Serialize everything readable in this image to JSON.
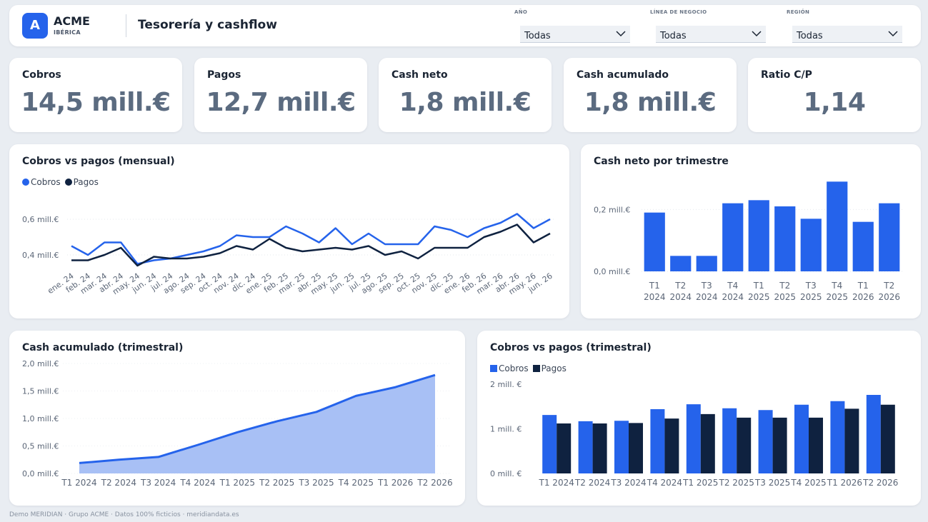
{
  "header": {
    "logo_letter": "A",
    "brand": "ACME",
    "brand_sub": "IBÉRICA",
    "title": "Tesorería y cashflow",
    "filters": [
      {
        "label": "AÑO",
        "value": "Todas"
      },
      {
        "label": "LÍNEA DE NEGOCIO",
        "value": "Todas"
      },
      {
        "label": "REGIÓN",
        "value": "Todas"
      }
    ]
  },
  "kpis": [
    {
      "label": "Cobros",
      "value": "14,5 mill.€"
    },
    {
      "label": "Pagos",
      "value": "12,7 mill.€"
    },
    {
      "label": "Cash neto",
      "value": "1,8 mill.€"
    },
    {
      "label": "Cash acumulado",
      "value": "1,8 mill.€"
    },
    {
      "label": "Ratio C/P",
      "value": "1,14"
    }
  ],
  "colors": {
    "cobros": "#2563eb",
    "pagos": "#0f2240",
    "area_fill": "#a8c0f5",
    "bar": "#2563eb"
  },
  "panels": {
    "monthly": {
      "title": "Cobros vs pagos (mensual)",
      "legend": [
        "Cobros",
        "Pagos"
      ]
    },
    "net_q": {
      "title": "Cash neto por trimestre"
    },
    "cum_q": {
      "title": "Cash acumulado (trimestral)"
    },
    "cp_q": {
      "title": "Cobros vs pagos (trimestral)",
      "legend": [
        "Cobros",
        "Pagos"
      ]
    }
  },
  "footer": "Demo MERIDIAN · Grupo ACME · Datos 100% ficticios · meridiandata.es",
  "chart_data": [
    {
      "type": "line",
      "title": "Cobros vs pagos (mensual)",
      "categories": [
        "ene. 24",
        "feb. 24",
        "mar. 24",
        "abr. 24",
        "may. 24",
        "jun. 24",
        "jul. 24",
        "ago. 24",
        "sep. 24",
        "oct. 24",
        "nov. 24",
        "dic. 24",
        "ene. 25",
        "feb. 25",
        "mar. 25",
        "abr. 25",
        "may. 25",
        "jun. 25",
        "jul. 25",
        "ago. 25",
        "sep. 25",
        "oct. 25",
        "nov. 25",
        "dic. 25",
        "ene. 26",
        "feb. 26",
        "mar. 26",
        "abr. 26",
        "may. 26",
        "jun. 26"
      ],
      "series": [
        {
          "name": "Cobros",
          "values": [
            0.45,
            0.4,
            0.47,
            0.47,
            0.35,
            0.37,
            0.38,
            0.4,
            0.42,
            0.45,
            0.51,
            0.5,
            0.5,
            0.56,
            0.52,
            0.47,
            0.55,
            0.46,
            0.52,
            0.46,
            0.46,
            0.46,
            0.56,
            0.54,
            0.5,
            0.55,
            0.58,
            0.63,
            0.55,
            0.6
          ]
        },
        {
          "name": "Pagos",
          "values": [
            0.37,
            0.37,
            0.4,
            0.44,
            0.34,
            0.39,
            0.38,
            0.38,
            0.39,
            0.41,
            0.45,
            0.43,
            0.49,
            0.44,
            0.42,
            0.43,
            0.44,
            0.43,
            0.45,
            0.4,
            0.42,
            0.38,
            0.44,
            0.44,
            0.44,
            0.5,
            0.53,
            0.57,
            0.47,
            0.52
          ]
        }
      ],
      "yticks": [
        {
          "v": 0.4,
          "label": "0,4 mill.€"
        },
        {
          "v": 0.6,
          "label": "0,6 mill.€"
        }
      ],
      "ylim": [
        0.3,
        0.7
      ],
      "legend": "top-left",
      "grid": true
    },
    {
      "type": "bar",
      "title": "Cash neto por trimestre",
      "categories": [
        [
          "T1",
          "2024"
        ],
        [
          "T2",
          "2024"
        ],
        [
          "T3",
          "2024"
        ],
        [
          "T4",
          "2024"
        ],
        [
          "T1",
          "2025"
        ],
        [
          "T2",
          "2025"
        ],
        [
          "T3",
          "2025"
        ],
        [
          "T4",
          "2025"
        ],
        [
          "T1",
          "2026"
        ],
        [
          "T2",
          "2026"
        ]
      ],
      "values": [
        0.19,
        0.05,
        0.05,
        0.22,
        0.23,
        0.21,
        0.17,
        0.29,
        0.16,
        0.22
      ],
      "yticks": [
        {
          "v": 0.0,
          "label": "0,0 mill.€"
        },
        {
          "v": 0.2,
          "label": "0,2 mill.€"
        }
      ],
      "ylim": [
        0,
        0.3
      ],
      "grid": true
    },
    {
      "type": "area",
      "title": "Cash acumulado (trimestral)",
      "categories": [
        "T1 2024",
        "T2 2024",
        "T3 2024",
        "T4 2024",
        "T1 2025",
        "T2 2025",
        "T3 2025",
        "T4 2025",
        "T1 2026",
        "T2 2026"
      ],
      "values": [
        0.19,
        0.25,
        0.3,
        0.52,
        0.75,
        0.95,
        1.12,
        1.41,
        1.57,
        1.79
      ],
      "yticks": [
        {
          "v": 0.0,
          "label": "0,0 mill.€"
        },
        {
          "v": 0.5,
          "label": "0,5 mill.€"
        },
        {
          "v": 1.0,
          "label": "1,0 mill.€"
        },
        {
          "v": 1.5,
          "label": "1,5 mill.€"
        },
        {
          "v": 2.0,
          "label": "2,0 mill.€"
        }
      ],
      "ylim": [
        0,
        2.0
      ],
      "grid": true
    },
    {
      "type": "bar",
      "title": "Cobros vs pagos (trimestral)",
      "categories": [
        "T1 2024",
        "T2 2024",
        "T3 2024",
        "T4 2024",
        "T1 2025",
        "T2 2025",
        "T3 2025",
        "T4 2025",
        "T1 2026",
        "T2 2026"
      ],
      "series": [
        {
          "name": "Cobros",
          "values": [
            1.31,
            1.17,
            1.18,
            1.44,
            1.55,
            1.46,
            1.42,
            1.54,
            1.62,
            1.76
          ]
        },
        {
          "name": "Pagos",
          "values": [
            1.12,
            1.12,
            1.13,
            1.23,
            1.33,
            1.25,
            1.25,
            1.25,
            1.45,
            1.54
          ]
        }
      ],
      "yticks": [
        {
          "v": 0,
          "label": "0 mill. €"
        },
        {
          "v": 1,
          "label": "1 mill. €"
        },
        {
          "v": 2,
          "label": "2 mill. €"
        }
      ],
      "ylim": [
        0,
        2.0
      ],
      "legend": "top-left",
      "grid": false
    }
  ]
}
